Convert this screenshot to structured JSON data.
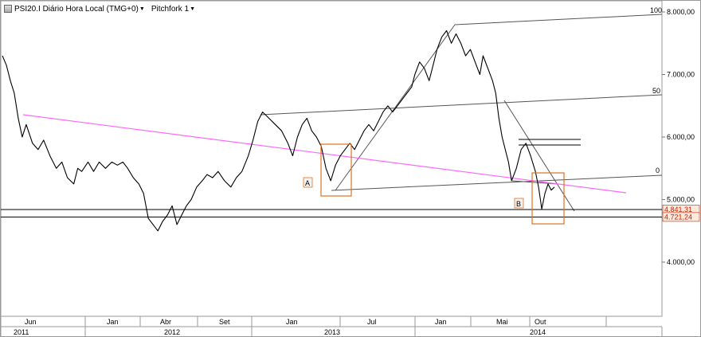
{
  "header": {
    "instrument": "PSI20.I Diário Hora Local (TMG+0)",
    "study": "Pitchfork 1"
  },
  "chart_data": {
    "type": "line",
    "title": "",
    "xlabel": "",
    "ylabel": "",
    "ylim": [
      2800,
      8200
    ],
    "y_ticks": [
      "8.000,00",
      "7.000,00",
      "6.000,00",
      "5.000,00",
      "4.000,00"
    ],
    "y_tick_values": [
      8000,
      7000,
      6000,
      5000,
      4000
    ],
    "x_month_labels": [
      "Jun",
      "Jan",
      "Abr",
      "Set",
      "Jan",
      "Jul",
      "Jan",
      "Mai",
      "Out"
    ],
    "x_year_labels": [
      "2011",
      "2012",
      "2013",
      "2014"
    ],
    "price_levels": [
      {
        "label": "4.841,31",
        "value": 4841.31
      },
      {
        "label": "4.721,24",
        "value": 4721.24
      }
    ],
    "pitchfork_labels": [
      "100",
      "50",
      "0"
    ],
    "box_labels": [
      "A",
      "B"
    ],
    "colors": {
      "price": "#000000",
      "trendline": "#ff66ff",
      "pitchfork": "#555555",
      "box": "#e07020",
      "level_label_bg": "#ffe8dc",
      "level_label_text": "#cc2200"
    },
    "series": [
      {
        "values": [
          [
            0,
            7300
          ],
          [
            5,
            7150
          ],
          [
            10,
            6900
          ],
          [
            15,
            6700
          ],
          [
            20,
            6300
          ],
          [
            25,
            6000
          ],
          [
            30,
            6200
          ],
          [
            38,
            5900
          ],
          [
            45,
            5800
          ],
          [
            52,
            5950
          ],
          [
            60,
            5700
          ],
          [
            68,
            5500
          ],
          [
            75,
            5600
          ],
          [
            82,
            5350
          ],
          [
            90,
            5250
          ],
          [
            95,
            5500
          ],
          [
            100,
            5450
          ],
          [
            108,
            5600
          ],
          [
            115,
            5450
          ],
          [
            122,
            5600
          ],
          [
            130,
            5500
          ],
          [
            138,
            5600
          ],
          [
            145,
            5550
          ],
          [
            152,
            5600
          ],
          [
            158,
            5500
          ],
          [
            165,
            5350
          ],
          [
            172,
            5250
          ],
          [
            178,
            5100
          ],
          [
            184,
            4700
          ],
          [
            190,
            4600
          ],
          [
            196,
            4500
          ],
          [
            202,
            4650
          ],
          [
            208,
            4750
          ],
          [
            214,
            4900
          ],
          [
            220,
            4600
          ],
          [
            226,
            4750
          ],
          [
            232,
            4900
          ],
          [
            238,
            5000
          ],
          [
            245,
            5200
          ],
          [
            252,
            5300
          ],
          [
            258,
            5400
          ],
          [
            265,
            5350
          ],
          [
            272,
            5450
          ],
          [
            280,
            5300
          ],
          [
            288,
            5200
          ],
          [
            295,
            5350
          ],
          [
            302,
            5450
          ],
          [
            310,
            5700
          ],
          [
            316,
            5950
          ],
          [
            322,
            6250
          ],
          [
            328,
            6400
          ],
          [
            336,
            6300
          ],
          [
            344,
            6200
          ],
          [
            352,
            6100
          ],
          [
            360,
            5900
          ],
          [
            366,
            5700
          ],
          [
            372,
            6000
          ],
          [
            378,
            6200
          ],
          [
            384,
            6300
          ],
          [
            390,
            6100
          ],
          [
            396,
            6000
          ],
          [
            402,
            5850
          ],
          [
            408,
            5500
          ],
          [
            414,
            5300
          ],
          [
            420,
            5550
          ],
          [
            426,
            5700
          ],
          [
            432,
            5800
          ],
          [
            438,
            5900
          ],
          [
            444,
            5800
          ],
          [
            450,
            5950
          ],
          [
            456,
            6100
          ],
          [
            462,
            6200
          ],
          [
            468,
            6100
          ],
          [
            474,
            6250
          ],
          [
            480,
            6400
          ],
          [
            486,
            6500
          ],
          [
            492,
            6400
          ],
          [
            498,
            6500
          ],
          [
            504,
            6600
          ],
          [
            510,
            6700
          ],
          [
            516,
            6800
          ],
          [
            520,
            7000
          ],
          [
            526,
            7200
          ],
          [
            532,
            7100
          ],
          [
            538,
            6900
          ],
          [
            542,
            7100
          ],
          [
            548,
            7400
          ],
          [
            554,
            7600
          ],
          [
            560,
            7700
          ],
          [
            566,
            7500
          ],
          [
            572,
            7650
          ],
          [
            578,
            7500
          ],
          [
            584,
            7300
          ],
          [
            590,
            7400
          ],
          [
            596,
            7200
          ],
          [
            602,
            7000
          ],
          [
            606,
            7300
          ],
          [
            612,
            7100
          ],
          [
            618,
            6900
          ],
          [
            622,
            6700
          ],
          [
            626,
            6300
          ],
          [
            630,
            6000
          ],
          [
            634,
            5800
          ],
          [
            638,
            5600
          ],
          [
            642,
            5300
          ],
          [
            648,
            5500
          ],
          [
            654,
            5800
          ],
          [
            660,
            5900
          ],
          [
            666,
            5700
          ],
          [
            672,
            5450
          ],
          [
            676,
            5200
          ],
          [
            680,
            4850
          ],
          [
            684,
            5100
          ],
          [
            688,
            5250
          ],
          [
            692,
            5150
          ],
          [
            696,
            5200
          ]
        ]
      }
    ]
  }
}
